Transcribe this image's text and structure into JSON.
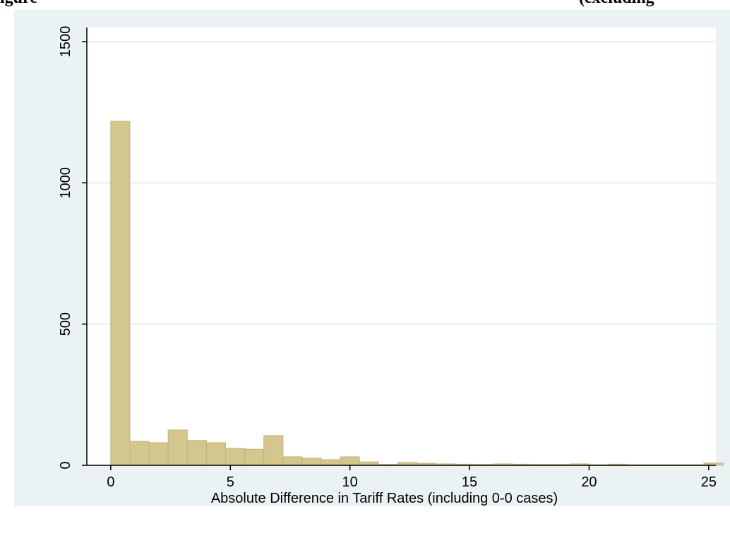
{
  "figure": {
    "title_left": "igure",
    "title_right": "(excluding"
  },
  "chart_data": {
    "type": "bar",
    "title": "",
    "xlabel": "Absolute Difference in Tariff Rates (including 0-0 cases)",
    "ylabel": "",
    "xlim": [
      -1,
      25.3
    ],
    "ylim": [
      0,
      1550
    ],
    "xticks": [
      0,
      5,
      10,
      15,
      20,
      25
    ],
    "yticks": [
      0,
      500,
      1000,
      1500
    ],
    "grid": true,
    "bin_width": 0.8,
    "bins_start": [
      0,
      0.8,
      1.6,
      2.4,
      3.2,
      4.0,
      4.8,
      5.6,
      6.4,
      7.2,
      8.0,
      8.8,
      9.6,
      10.4,
      11.2,
      12.0,
      12.8,
      13.6,
      14.4,
      15.2,
      16.0,
      16.8,
      17.6,
      18.4,
      19.2,
      20.0,
      20.8,
      21.6,
      22.4,
      23.2,
      24.0,
      24.8
    ],
    "values": [
      1218,
      85,
      80,
      125,
      88,
      80,
      60,
      57,
      105,
      30,
      25,
      20,
      30,
      12,
      3,
      10,
      7,
      5,
      4,
      3,
      5,
      4,
      3,
      3,
      5,
      2,
      4,
      2,
      2,
      2,
      2,
      8
    ],
    "bar_color": "#d4c78e",
    "bar_edge": "#c2b27a",
    "plot_bg": "#ffffff",
    "outer_bg": "#eaf2f3",
    "grid_color": "#e6eef0"
  }
}
